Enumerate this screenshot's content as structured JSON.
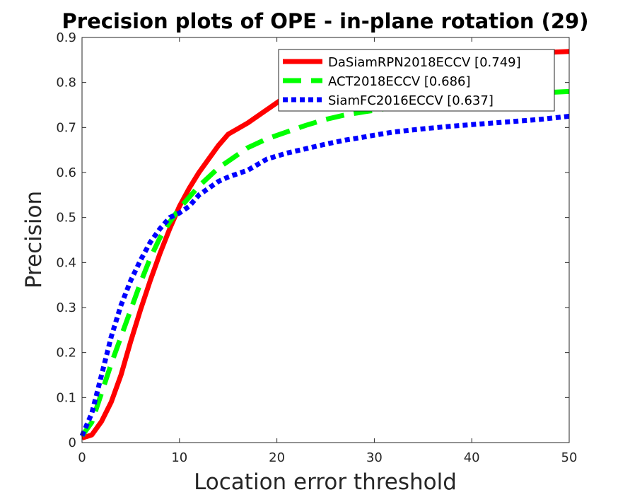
{
  "chart_data": {
    "type": "line",
    "title": "Precision plots of OPE - in-plane rotation (29)",
    "xlabel": "Location error threshold",
    "ylabel": "Precision",
    "xlim": [
      0,
      50
    ],
    "ylim": [
      0,
      0.9
    ],
    "xticks": [
      "0",
      "10",
      "20",
      "30",
      "40",
      "50"
    ],
    "yticks": [
      "0",
      "0.1",
      "0.2",
      "0.3",
      "0.4",
      "0.5",
      "0.6",
      "0.7",
      "0.8",
      "0.9"
    ],
    "grid": false,
    "legend_position": "top-right",
    "x": [
      0,
      1,
      2,
      3,
      4,
      5,
      6,
      7,
      8,
      9,
      10,
      11,
      12,
      13,
      14,
      15,
      17,
      19,
      21,
      23,
      25,
      27,
      29,
      30,
      32,
      35,
      38,
      41,
      44,
      47,
      50
    ],
    "series": [
      {
        "name": "DaSiamRPN2018ECCV [0.749]",
        "color": "#ff0000",
        "style": "solid",
        "values": [
          0.01,
          0.017,
          0.047,
          0.09,
          0.15,
          0.225,
          0.295,
          0.36,
          0.42,
          0.475,
          0.525,
          0.565,
          0.6,
          0.63,
          0.66,
          0.685,
          0.71,
          0.74,
          0.77,
          0.79,
          0.805,
          0.815,
          0.825,
          0.83,
          0.838,
          0.846,
          0.852,
          0.857,
          0.862,
          0.866,
          0.869
        ]
      },
      {
        "name": "ACT2018ECCV [0.686]",
        "color": "#00ff00",
        "style": "dashed",
        "values": [
          0.015,
          0.045,
          0.11,
          0.175,
          0.235,
          0.295,
          0.355,
          0.41,
          0.455,
          0.49,
          0.52,
          0.545,
          0.57,
          0.59,
          0.61,
          0.625,
          0.655,
          0.675,
          0.69,
          0.705,
          0.718,
          0.728,
          0.735,
          0.738,
          0.745,
          0.755,
          0.762,
          0.768,
          0.773,
          0.777,
          0.78
        ]
      },
      {
        "name": "SiamFC2016ECCV [0.637]",
        "color": "#0000ff",
        "style": "dotted",
        "values": [
          0.015,
          0.065,
          0.15,
          0.235,
          0.305,
          0.36,
          0.405,
          0.445,
          0.475,
          0.5,
          0.51,
          0.525,
          0.55,
          0.565,
          0.58,
          0.59,
          0.605,
          0.63,
          0.643,
          0.653,
          0.663,
          0.672,
          0.679,
          0.683,
          0.69,
          0.697,
          0.703,
          0.708,
          0.713,
          0.718,
          0.725
        ]
      }
    ]
  }
}
